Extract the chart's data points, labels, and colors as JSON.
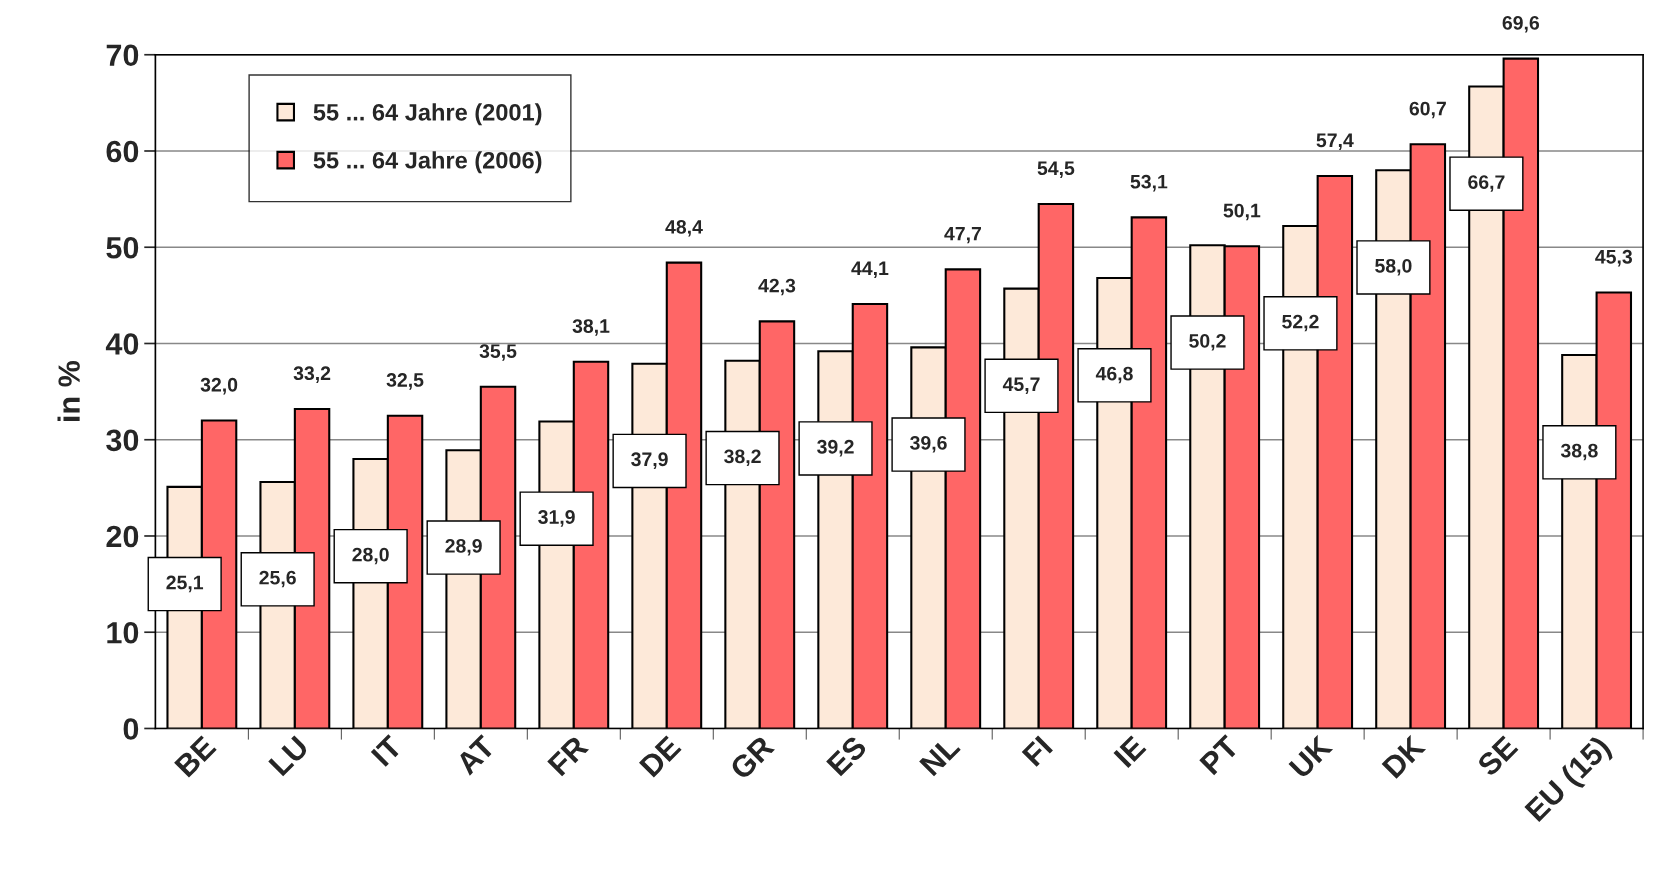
{
  "chart_data": {
    "type": "bar",
    "ylabel": "in %",
    "categories": [
      "BE",
      "LU",
      "IT",
      "AT",
      "FR",
      "DE",
      "GR",
      "ES",
      "NL",
      "FI",
      "IE",
      "PT",
      "UK",
      "DK",
      "SE",
      "EU (15)"
    ],
    "series": [
      {
        "name": "55 ... 64 Jahre (2001)",
        "color": "#fde9d9",
        "values": [
          25.1,
          25.6,
          28.0,
          28.9,
          31.9,
          37.9,
          38.2,
          39.2,
          39.6,
          45.7,
          46.8,
          50.2,
          52.2,
          58.0,
          66.7,
          38.8
        ],
        "value_labels": [
          "25,1",
          "25,6",
          "28,0",
          "28,9",
          "31,9",
          "37,9",
          "38,2",
          "39,2",
          "39,6",
          "45,7",
          "46,8",
          "50,2",
          "52,2",
          "58,0",
          "66,7",
          "38,8"
        ]
      },
      {
        "name": "55 ... 64 Jahre (2006)",
        "color": "#ff6666",
        "values": [
          32.0,
          33.2,
          32.5,
          35.5,
          38.1,
          48.4,
          42.3,
          44.1,
          47.7,
          54.5,
          53.1,
          50.1,
          57.4,
          60.7,
          69.6,
          45.3
        ],
        "value_labels": [
          "32,0",
          "33,2",
          "32,5",
          "35,5",
          "38,1",
          "48,4",
          "42,3",
          "44,1",
          "47,7",
          "54,5",
          "53,1",
          "50,1",
          "57,4",
          "60,7",
          "69,6",
          "45,3"
        ]
      }
    ],
    "ylim": [
      0,
      70
    ],
    "yticks": [
      0,
      10,
      20,
      30,
      40,
      50,
      60,
      70
    ],
    "grid": "y",
    "legend": "top left"
  }
}
